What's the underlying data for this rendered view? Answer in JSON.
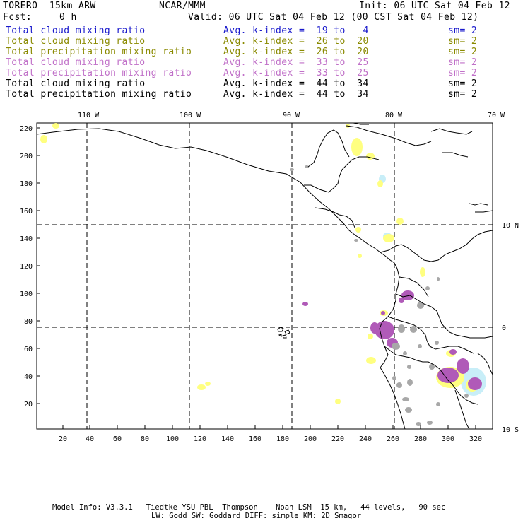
{
  "header": {
    "model": "TORERO  15km ARW",
    "org": "NCAR/MMM",
    "init": "Init: 06 UTC Sat 04 Feb 12",
    "fcst_label": "Fcst:",
    "fcst_value": "0 h",
    "valid": "Valid: 06 UTC Sat 04 Feb 12 (00 CST Sat 04 Feb 12)"
  },
  "legend": [
    {
      "field": "Total cloud mixing ratio",
      "kindex": "Avg. k-index =  19 to   4",
      "sm": "sm= 2",
      "color": "#1a1acc"
    },
    {
      "field": "Total cloud mixing ratio",
      "kindex": "Avg. k-index =  26 to  20",
      "sm": "sm= 2",
      "color": "#8a8a00"
    },
    {
      "field": "Total precipitation mixing ratio",
      "kindex": "Avg. k-index =  26 to  20",
      "sm": "sm= 2",
      "color": "#8a8a00"
    },
    {
      "field": "Total cloud mixing ratio",
      "kindex": "Avg. k-index =  33 to  25",
      "sm": "sm= 2",
      "color": "#c070c8"
    },
    {
      "field": "Total precipitation mixing ratio",
      "kindex": "Avg. k-index =  33 to  25",
      "sm": "sm= 2",
      "color": "#c070c8"
    },
    {
      "field": "Total cloud mixing ratio",
      "kindex": "Avg. k-index =  44 to  34",
      "sm": "sm= 2",
      "color": "#000000"
    },
    {
      "field": "Total precipitation mixing ratio",
      "kindex": "Avg. k-index =  44 to  34",
      "sm": "sm= 2",
      "color": "#000000"
    }
  ],
  "map": {
    "longitude_labels": [
      "110 W",
      "100 W",
      "90 W",
      "80 W",
      "70 W"
    ],
    "latitude_labels": [
      "10 N",
      "0",
      "10 S"
    ],
    "grid_x_ticks": [
      "20",
      "40",
      "60",
      "80",
      "100",
      "120",
      "140",
      "160",
      "180",
      "200",
      "220",
      "240",
      "260",
      "280",
      "300",
      "320"
    ],
    "grid_y_ticks": [
      "20",
      "40",
      "60",
      "80",
      "100",
      "120",
      "140",
      "160",
      "180",
      "200",
      "220"
    ],
    "colors": {
      "yellow": "#ffff80",
      "purple": "#b05ab8",
      "gray": "#a8a8a8",
      "light_blue": "#c8eef8",
      "coast": "#000000"
    }
  },
  "footer": {
    "line1": "Model Info: V3.3.1   Tiedtke YSU PBL  Thompson    Noah LSM  15 km,   44 levels,   90 sec",
    "line2": "LW: Godd SW: Goddard DIFF: simple KM: 2D Smagor"
  }
}
